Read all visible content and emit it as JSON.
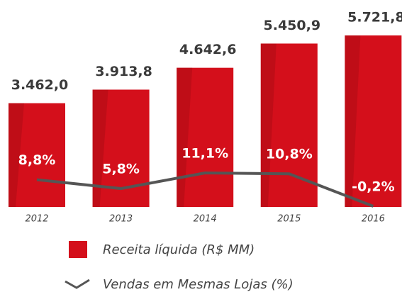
{
  "chart_data": {
    "type": "bar",
    "categories": [
      "2012",
      "2013",
      "2014",
      "2015",
      "2016"
    ],
    "series": [
      {
        "name": "Receita líquida (R$ MM)",
        "type": "bar",
        "color": "#d40f1b",
        "values": [
          3462.0,
          3913.8,
          4642.6,
          5450.9,
          5721.8
        ],
        "value_labels": [
          "3.462,0",
          "3.913,8",
          "4.642,6",
          "5.450,9",
          "5.721,8"
        ]
      },
      {
        "name": "Vendas em Mesmas Lojas (%)",
        "type": "line",
        "axis": "y2",
        "color": "#555555",
        "values": [
          8.8,
          5.8,
          11.1,
          10.8,
          -0.2
        ],
        "value_labels": [
          "8,8%",
          "5,8%",
          "11,1%",
          "10,8%",
          "-0,2%"
        ]
      }
    ]
  }
}
